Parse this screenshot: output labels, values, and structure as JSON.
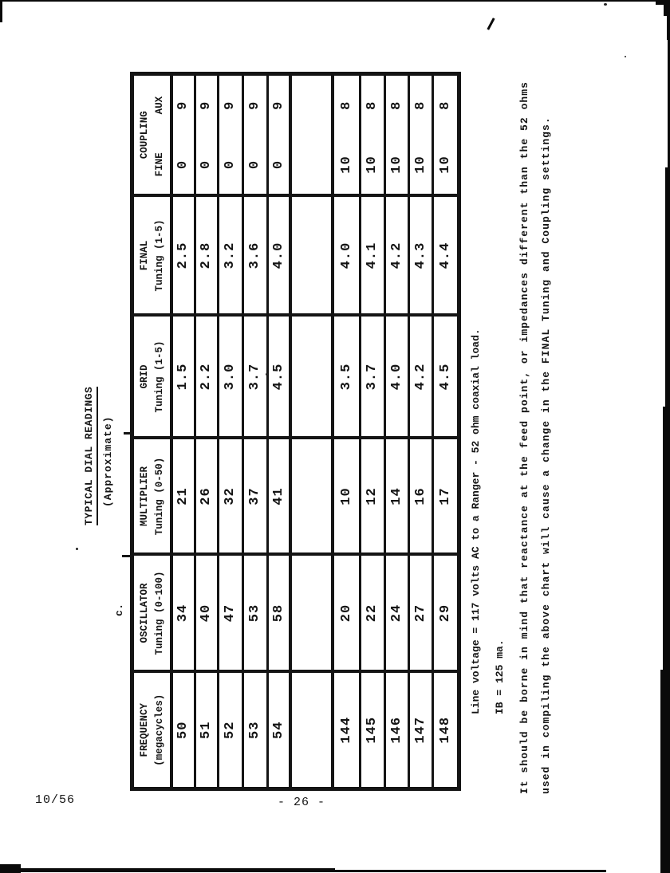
{
  "heading": {
    "item_label": "c.",
    "title": "TYPICAL DIAL READINGS",
    "subtitle": "(Approximate)"
  },
  "table": {
    "columns": [
      {
        "line1": "FREQUENCY",
        "line2": "(megacycles)"
      },
      {
        "line1": "OSCILLATOR",
        "line2": "Tuning (0-100)"
      },
      {
        "line1": "MULTIPLIER",
        "line2": "Tuning (0-50)"
      },
      {
        "line1": "GRID",
        "line2": "Tuning (1-5)"
      },
      {
        "line1": "FINAL",
        "line2": "Tuning (1-5)"
      },
      {
        "line1": "COUPLING",
        "sub": [
          "FINE",
          "AUX"
        ]
      }
    ],
    "rows": [
      [
        "50",
        "34",
        "21",
        "1.5",
        "2.5",
        "0",
        "9"
      ],
      [
        "51",
        "40",
        "26",
        "2.2",
        "2.8",
        "0",
        "9"
      ],
      [
        "52",
        "47",
        "32",
        "3.0",
        "3.2",
        "0",
        "9"
      ],
      [
        "53",
        "53",
        "37",
        "3.7",
        "3.6",
        "0",
        "9"
      ],
      [
        "54",
        "58",
        "41",
        "4.5",
        "4.0",
        "0",
        "9"
      ],
      [
        "",
        "",
        "",
        "",
        "",
        "",
        ""
      ],
      [
        "144",
        "20",
        "10",
        "3.5",
        "4.0",
        "10",
        "8"
      ],
      [
        "145",
        "22",
        "12",
        "3.7",
        "4.1",
        "10",
        "8"
      ],
      [
        "146",
        "24",
        "14",
        "4.0",
        "4.2",
        "10",
        "8"
      ],
      [
        "147",
        "27",
        "16",
        "4.2",
        "4.3",
        "10",
        "8"
      ],
      [
        "148",
        "29",
        "17",
        "4.5",
        "4.4",
        "10",
        "8"
      ]
    ]
  },
  "notes": {
    "line1": "Line voltage = 117 volts AC to a Ranger - 52 ohm coaxial load.",
    "line2": "IB = 125 ma.",
    "line3a": "It should be borne in mind that reactance at the feed point, or impedances different than the 52 ohms",
    "line3b": "used in compiling the above chart will cause a change in the FINAL Tuning and Coupling settings."
  },
  "footer": {
    "left": "10/56",
    "center": "- 26 -"
  },
  "colors": {
    "ink": "#141414",
    "paper": "#ffffff"
  }
}
